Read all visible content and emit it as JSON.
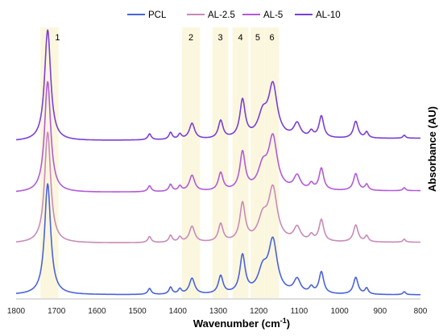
{
  "chart_data": {
    "type": "line",
    "xlabel": "Wavenumber (cm",
    "xlabel_sup": "-1",
    "xlabel_tail": ")",
    "ylabel": "Absorbance (AU)",
    "x_reversed": true,
    "xlim": [
      800,
      1800
    ],
    "x_ticks": [
      "1800",
      "1700",
      "1600",
      "1500",
      "1400",
      "1300",
      "1200",
      "1100",
      "1000",
      "900",
      "800"
    ],
    "legend_position": "top",
    "grid": false,
    "colors": {
      "PCL": "#4a63d9",
      "AL-2.5": "#c98ab8",
      "AL-5": "#b35ad8",
      "AL-10": "#7a3fd6",
      "band_fill": "#fbf7df"
    },
    "bands": [
      {
        "label": "1",
        "from": 1740,
        "to": 1695
      },
      {
        "label": "2",
        "from": 1390,
        "to": 1345
      },
      {
        "label": "3",
        "from": 1315,
        "to": 1275
      },
      {
        "label": "4",
        "from": 1265,
        "to": 1225
      },
      {
        "label": "5",
        "from": 1220,
        "to": 1185
      },
      {
        "label": "6",
        "from": 1185,
        "to": 1150
      }
    ],
    "series": [
      {
        "name": "PCL",
        "offset": 0,
        "scale": 1.0,
        "baseline_tilt": 0
      },
      {
        "name": "AL-2.5",
        "offset": 0.52,
        "scale": 1.0,
        "baseline_tilt": 0.01
      },
      {
        "name": "AL-5",
        "offset": 1.03,
        "scale": 1.0,
        "baseline_tilt": 0.02
      },
      {
        "name": "AL-10",
        "offset": 1.55,
        "scale": 1.0,
        "baseline_tilt": 0.03
      }
    ],
    "peaks": [
      {
        "x": 1722,
        "height": 1.12,
        "width": 9
      },
      {
        "x": 1470,
        "height": 0.06,
        "width": 5
      },
      {
        "x": 1418,
        "height": 0.07,
        "width": 5
      },
      {
        "x": 1395,
        "height": 0.05,
        "width": 5
      },
      {
        "x": 1365,
        "height": 0.16,
        "width": 8
      },
      {
        "x": 1294,
        "height": 0.18,
        "width": 7
      },
      {
        "x": 1240,
        "height": 0.38,
        "width": 8
      },
      {
        "x": 1190,
        "height": 0.22,
        "width": 14
      },
      {
        "x": 1165,
        "height": 0.52,
        "width": 13
      },
      {
        "x": 1105,
        "height": 0.14,
        "width": 10
      },
      {
        "x": 1070,
        "height": 0.06,
        "width": 6
      },
      {
        "x": 1045,
        "height": 0.22,
        "width": 7
      },
      {
        "x": 960,
        "height": 0.17,
        "width": 7
      },
      {
        "x": 933,
        "height": 0.06,
        "width": 5
      },
      {
        "x": 840,
        "height": 0.03,
        "width": 4
      }
    ]
  }
}
